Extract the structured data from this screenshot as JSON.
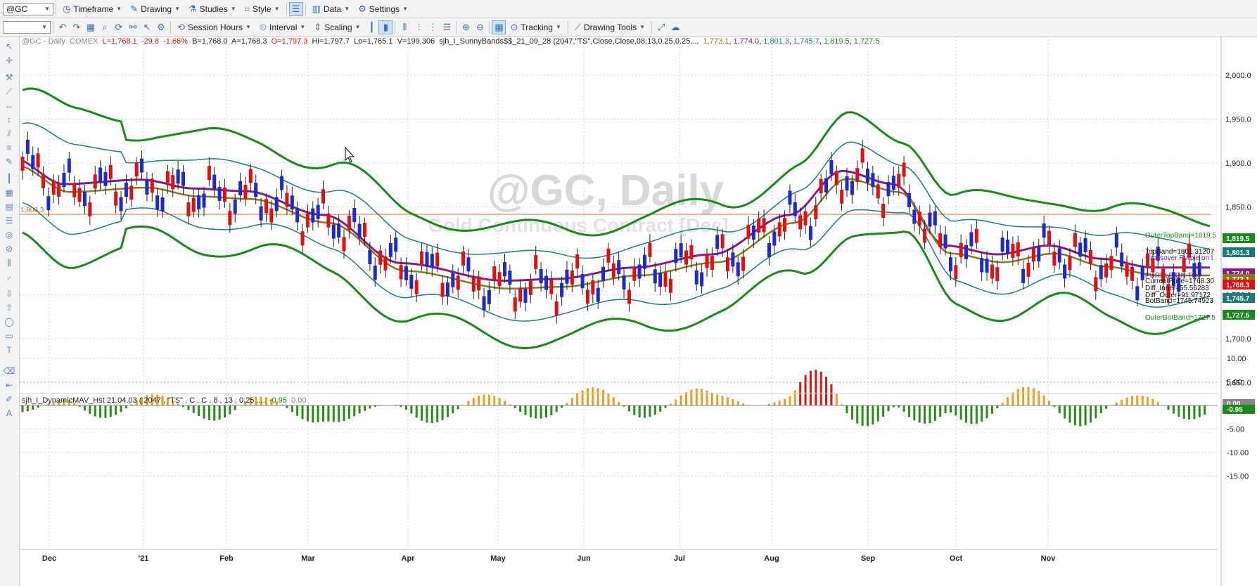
{
  "toolbar1": {
    "symbol": "@GC",
    "items": [
      {
        "name": "timeframe-menu",
        "label": "Timeframe",
        "icon": "clock-icon"
      },
      {
        "name": "drawing-menu",
        "label": "Drawing",
        "icon": "pencil-icon"
      },
      {
        "name": "studies-menu",
        "label": "Studies",
        "icon": "flask-icon"
      },
      {
        "name": "style-menu",
        "label": "Style",
        "icon": "style-icon"
      }
    ],
    "items2": [
      {
        "name": "data-menu",
        "label": "Data",
        "icon": "data-icon"
      },
      {
        "name": "settings-menu",
        "label": "Settings",
        "icon": "gear-icon"
      }
    ]
  },
  "toolbar2": {
    "items": [
      {
        "name": "session-hours-menu",
        "label": "Session Hours",
        "icon": "session-icon"
      },
      {
        "name": "interval-menu",
        "label": "Interval",
        "icon": "interval-icon"
      },
      {
        "name": "scaling-menu",
        "label": "Scaling",
        "icon": "scaling-icon"
      }
    ],
    "tracking_label": "Tracking",
    "drawing_tools_label": "Drawing Tools"
  },
  "chart_info": {
    "symbol": "@GC - Daily",
    "exchange": "COMEX",
    "last": "L=1,768.1",
    "change": "-29.8",
    "pct": "-1.66%",
    "bid": "B=1,768.0",
    "ask": "A=1,768.3",
    "open": "O=1,797.3",
    "high": "Hi=1,797.7",
    "low": "Lo=1,765.1",
    "volume": "V=199,306",
    "indicator": "sjh_I_SunnyBands$$_21_09_28 (2047,\"TS\",Close,Close,08,13,0.25,0.25,...",
    "vals": [
      "1,773.1",
      "1,774.0",
      "1,801.3",
      "1,745.7",
      "1,819.5",
      "1,727.5"
    ],
    "val_colors": [
      "#8a7a1a",
      "#8a1a8a",
      "#1a7a7a",
      "#1a7a7a",
      "#1a8a1a",
      "#1a8a1a"
    ]
  },
  "sub_info": {
    "indicator": "sjh_I_DynamicMAV_Hst 21.04.03 ( 2047 , \"TS\" , C , C ,  8 , 13 , 0.25 ,...",
    "val1": "-0.95",
    "val2": "0.00"
  },
  "watermark": {
    "title": "@GC, Daily",
    "subtitle": "Gold Continuous Contract [Dec]"
  },
  "price_scale": [
    "2,000.0",
    "1,950.0",
    "1,900.0",
    "1,850.0",
    "1,800.0",
    "1,750.0",
    "1,700.0",
    "1,650.0"
  ],
  "sub_scale": [
    "10.00",
    "5.00",
    "0.00",
    "-5.00",
    "-10.00",
    "-15.00"
  ],
  "months": [
    "Dec",
    "'21",
    "Feb",
    "Mar",
    "Apr",
    "May",
    "Jun",
    "Jul",
    "Aug",
    "Sep",
    "Oct",
    "Nov"
  ],
  "hline_label": "1,808.3",
  "right_labels": [
    {
      "text": "OuterTopBand=1819.5",
      "color": "#1a8a1a"
    },
    {
      "text": "TopBand=1801.31207",
      "color": "#111"
    },
    {
      "text": "Crossover Purple on t",
      "color": "#8a1a8a"
    },
    {
      "text": "PURPLE ON TOP",
      "color": "#8a1a8a"
    },
    {
      "text": "CurrentPrice=1768.30",
      "color": "#111"
    },
    {
      "text": "Diff_Inner=55.56283",
      "color": "#111"
    },
    {
      "text": "Diff_Outer=91.97172",
      "color": "#111"
    },
    {
      "text": "BotBand=1745.74923",
      "color": "#111"
    },
    {
      "text": "OuterBotBand=1727.5",
      "color": "#1a8a1a"
    }
  ],
  "value_tags": [
    {
      "text": "1,819.5",
      "color": "#1a8a1a"
    },
    {
      "text": "1,801.3",
      "color": "#1a7a7a"
    },
    {
      "text": "1,774.0",
      "color": "#8a1a8a"
    },
    {
      "text": "1,773.1",
      "color": "#8a7a1a"
    },
    {
      "text": "1,768.3",
      "color": "#e01010"
    },
    {
      "text": "1,745.7",
      "color": "#1a7a7a"
    },
    {
      "text": "1,727.5",
      "color": "#1a8a1a"
    }
  ],
  "sub_tags": [
    {
      "text": "0.00",
      "color": "#888888"
    },
    {
      "text": "-0.95",
      "color": "#1a8a1a"
    }
  ],
  "colors": {
    "outer": "#1a8a1a",
    "inner": "#1a8080",
    "purple": "#8a1a8a",
    "olive": "#8a7a1a",
    "up": "#1a2acc",
    "down": "#e01010",
    "hline": "#e86020",
    "hist_pos_a": "#e6a020",
    "hist_pos_b": "#e01010",
    "hist_neg_a": "#8a1a8a",
    "hist_neg_b": "#2a8a1a"
  }
}
